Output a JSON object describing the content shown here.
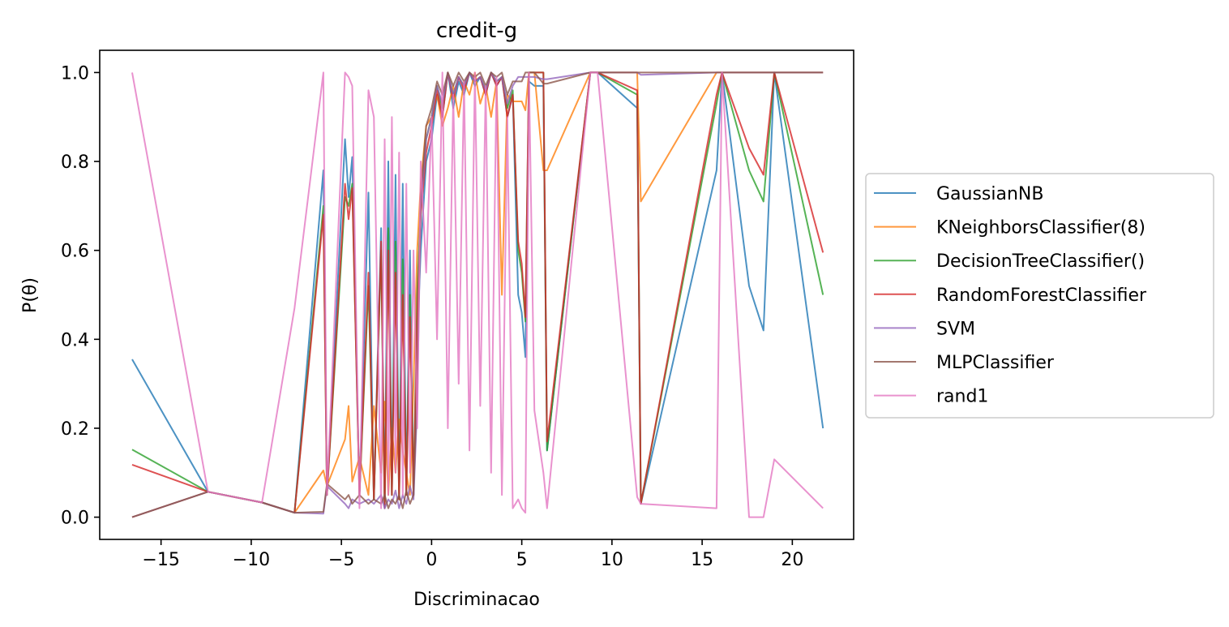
{
  "chart_data": {
    "type": "line",
    "title": "credit-g",
    "xlabel": "Discriminacao",
    "ylabel": "P(θ)",
    "xlim": [
      -18.4,
      23.4
    ],
    "ylim": [
      -0.05,
      1.05
    ],
    "xticks": [
      -15,
      -10,
      -5,
      0,
      5,
      10,
      15,
      20
    ],
    "xtick_labels": [
      "−15",
      "−10",
      "−5",
      "0",
      "5",
      "10",
      "15",
      "20"
    ],
    "yticks": [
      0.0,
      0.2,
      0.4,
      0.6,
      0.8,
      1.0
    ],
    "ytick_labels": [
      "0.0",
      "0.2",
      "0.4",
      "0.6",
      "0.8",
      "1.0"
    ],
    "grid": false,
    "legend_position": "right-outside",
    "series": [
      {
        "name": "GaussianNB",
        "color": "#1f77b4",
        "x": [
          -16.6,
          -12.4,
          -9.4,
          -7.6,
          -6.0,
          -5.8,
          -4.8,
          -4.6,
          -4.4,
          -4.0,
          -3.5,
          -3.2,
          -2.8,
          -2.6,
          -2.4,
          -2.2,
          -2.0,
          -1.8,
          -1.6,
          -1.4,
          -1.2,
          -1.0,
          -0.8,
          -0.6,
          -0.3,
          0.0,
          0.3,
          0.6,
          0.9,
          1.2,
          1.5,
          1.8,
          2.1,
          2.4,
          2.7,
          3.0,
          3.3,
          3.6,
          3.9,
          4.2,
          4.5,
          4.8,
          5.0,
          5.2,
          5.4,
          5.7,
          6.2,
          6.4,
          8.8,
          9.2,
          11.4,
          11.6,
          15.8,
          16.1,
          17.6,
          18.4,
          19.0,
          21.7
        ],
        "y": [
          0.355,
          0.057,
          0.033,
          0.01,
          0.78,
          0.05,
          0.85,
          0.72,
          0.81,
          0.05,
          0.73,
          0.04,
          0.65,
          0.02,
          0.8,
          0.05,
          0.77,
          0.04,
          0.75,
          0.05,
          0.6,
          0.05,
          0.4,
          0.6,
          0.8,
          0.85,
          0.95,
          0.9,
          1.0,
          0.92,
          0.98,
          0.95,
          1.0,
          0.97,
          0.99,
          0.95,
          1.0,
          0.97,
          0.99,
          0.9,
          0.95,
          0.5,
          0.46,
          0.36,
          0.98,
          0.97,
          0.97,
          0.15,
          1.0,
          1.0,
          0.92,
          0.03,
          0.78,
          1.0,
          0.52,
          0.42,
          1.0,
          0.2
        ]
      },
      {
        "name": "KNeighborsClassifier(8)",
        "color": "#ff7f0e",
        "x": [
          -16.6,
          -12.4,
          -9.4,
          -7.6,
          -6.0,
          -5.8,
          -4.8,
          -4.6,
          -4.4,
          -4.0,
          -3.5,
          -3.2,
          -2.8,
          -2.6,
          -2.4,
          -2.2,
          -2.0,
          -1.8,
          -1.6,
          -1.4,
          -1.2,
          -1.0,
          -0.8,
          -0.6,
          -0.3,
          0.0,
          0.3,
          0.6,
          0.9,
          1.2,
          1.5,
          1.8,
          2.1,
          2.4,
          2.7,
          3.0,
          3.3,
          3.6,
          3.9,
          4.2,
          4.5,
          4.8,
          5.0,
          5.2,
          5.4,
          5.7,
          6.2,
          6.4,
          8.8,
          9.2,
          11.4,
          11.6,
          15.8,
          16.1,
          17.6,
          18.4,
          19.0,
          21.7
        ],
        "y": [
          0.0,
          0.057,
          0.033,
          0.01,
          0.105,
          0.07,
          0.175,
          0.25,
          0.08,
          0.135,
          0.05,
          0.25,
          0.1,
          0.26,
          0.05,
          0.2,
          0.1,
          0.22,
          0.15,
          0.1,
          0.05,
          0.3,
          0.6,
          0.75,
          0.88,
          0.9,
          0.95,
          0.88,
          0.92,
          0.97,
          0.9,
          0.98,
          0.95,
          1.0,
          0.93,
          0.97,
          0.9,
          0.98,
          0.5,
          0.95,
          0.935,
          0.935,
          0.935,
          0.915,
          1.0,
          1.0,
          0.78,
          0.78,
          1.0,
          1.0,
          1.0,
          0.71,
          1.0,
          1.0,
          1.0,
          1.0,
          1.0,
          1.0
        ]
      },
      {
        "name": "DecisionTreeClassifier()",
        "color": "#2ca02c",
        "x": [
          -16.6,
          -12.4,
          -9.4,
          -7.6,
          -6.0,
          -5.8,
          -4.8,
          -4.6,
          -4.4,
          -4.0,
          -3.5,
          -3.2,
          -2.8,
          -2.6,
          -2.4,
          -2.2,
          -2.0,
          -1.8,
          -1.6,
          -1.4,
          -1.2,
          -1.0,
          -0.8,
          -0.6,
          -0.3,
          0.0,
          0.3,
          0.6,
          0.9,
          1.2,
          1.5,
          1.8,
          2.1,
          2.4,
          2.7,
          3.0,
          3.3,
          3.6,
          3.9,
          4.2,
          4.5,
          4.8,
          5.0,
          5.2,
          5.4,
          5.7,
          6.2,
          6.4,
          8.8,
          9.2,
          11.4,
          11.6,
          15.8,
          16.1,
          17.6,
          18.4,
          19.0,
          21.7
        ],
        "y": [
          0.152,
          0.057,
          0.033,
          0.01,
          0.7,
          0.05,
          0.72,
          0.7,
          0.75,
          0.05,
          0.52,
          0.04,
          0.6,
          0.02,
          0.65,
          0.05,
          0.62,
          0.04,
          0.58,
          0.05,
          0.5,
          0.05,
          0.5,
          0.7,
          0.85,
          0.9,
          0.97,
          0.92,
          1.0,
          0.95,
          0.99,
          0.97,
          1.0,
          0.98,
          0.99,
          0.96,
          1.0,
          0.98,
          0.99,
          0.92,
          0.96,
          0.6,
          0.55,
          0.44,
          1.0,
          1.0,
          1.0,
          0.15,
          1.0,
          1.0,
          0.95,
          0.03,
          0.93,
          1.0,
          0.78,
          0.71,
          1.0,
          0.5
        ]
      },
      {
        "name": "RandomForestClassifier",
        "color": "#d62728",
        "x": [
          -16.6,
          -12.4,
          -9.4,
          -7.6,
          -6.0,
          -5.8,
          -4.8,
          -4.6,
          -4.4,
          -4.0,
          -3.5,
          -3.2,
          -2.8,
          -2.6,
          -2.4,
          -2.2,
          -2.0,
          -1.8,
          -1.6,
          -1.4,
          -1.2,
          -1.0,
          -0.8,
          -0.6,
          -0.3,
          0.0,
          0.3,
          0.6,
          0.9,
          1.2,
          1.5,
          1.8,
          2.1,
          2.4,
          2.7,
          3.0,
          3.3,
          3.6,
          3.9,
          4.2,
          4.5,
          4.8,
          5.0,
          5.2,
          5.4,
          5.7,
          6.2,
          6.4,
          8.8,
          9.2,
          11.4,
          11.6,
          15.8,
          16.1,
          17.6,
          18.4,
          19.0,
          21.7
        ],
        "y": [
          0.118,
          0.057,
          0.033,
          0.01,
          0.68,
          0.05,
          0.75,
          0.67,
          0.74,
          0.05,
          0.55,
          0.04,
          0.62,
          0.02,
          0.6,
          0.05,
          0.55,
          0.04,
          0.5,
          0.05,
          0.45,
          0.05,
          0.45,
          0.68,
          0.82,
          0.88,
          0.96,
          0.9,
          1.0,
          0.94,
          0.99,
          0.96,
          1.0,
          0.98,
          0.99,
          0.95,
          1.0,
          0.97,
          0.99,
          0.9,
          0.95,
          0.62,
          0.57,
          0.45,
          1.0,
          1.0,
          1.0,
          0.17,
          1.0,
          1.0,
          0.96,
          0.03,
          0.95,
          1.0,
          0.83,
          0.77,
          1.0,
          0.595
        ]
      },
      {
        "name": "SVM",
        "color": "#9467bd",
        "x": [
          -16.6,
          -12.4,
          -9.4,
          -7.6,
          -6.0,
          -5.8,
          -4.8,
          -4.6,
          -4.4,
          -4.0,
          -3.5,
          -3.2,
          -2.8,
          -2.6,
          -2.4,
          -2.2,
          -2.0,
          -1.8,
          -1.6,
          -1.4,
          -1.2,
          -1.0,
          -0.8,
          -0.6,
          -0.3,
          0.0,
          0.3,
          0.6,
          0.9,
          1.2,
          1.5,
          1.8,
          2.1,
          2.4,
          2.7,
          3.0,
          3.3,
          3.6,
          3.9,
          4.2,
          4.5,
          4.8,
          5.0,
          5.2,
          5.4,
          5.7,
          6.2,
          6.4,
          8.8,
          9.2,
          11.4,
          11.6,
          15.8,
          16.1,
          17.6,
          18.4,
          19.0,
          21.7
        ],
        "y": [
          0.0,
          0.057,
          0.033,
          0.01,
          0.008,
          0.07,
          0.03,
          0.02,
          0.04,
          0.03,
          0.04,
          0.03,
          0.05,
          0.02,
          0.04,
          0.03,
          0.06,
          0.02,
          0.05,
          0.03,
          0.07,
          0.04,
          0.25,
          0.7,
          0.85,
          0.9,
          0.97,
          0.93,
          1.0,
          0.95,
          0.99,
          0.97,
          1.0,
          0.98,
          0.99,
          0.96,
          1.0,
          0.98,
          0.99,
          0.93,
          0.97,
          0.99,
          0.99,
          0.99,
          0.99,
          0.99,
          0.985,
          0.985,
          1.0,
          1.0,
          1.0,
          0.995,
          1.0,
          1.0,
          1.0,
          1.0,
          1.0,
          1.0
        ]
      },
      {
        "name": "MLPClassifier",
        "color": "#8c564b",
        "x": [
          -16.6,
          -12.4,
          -9.4,
          -7.6,
          -6.0,
          -5.8,
          -4.8,
          -4.6,
          -4.4,
          -4.0,
          -3.5,
          -3.2,
          -2.8,
          -2.6,
          -2.4,
          -2.2,
          -2.0,
          -1.8,
          -1.6,
          -1.4,
          -1.2,
          -1.0,
          -0.8,
          -0.6,
          -0.3,
          0.0,
          0.3,
          0.6,
          0.9,
          1.2,
          1.5,
          1.8,
          2.1,
          2.4,
          2.7,
          3.0,
          3.3,
          3.6,
          3.9,
          4.2,
          4.5,
          4.8,
          5.0,
          5.2,
          5.4,
          5.7,
          6.2,
          6.4,
          8.8,
          9.2,
          11.4,
          11.6,
          15.8,
          16.1,
          17.6,
          18.4,
          19.0,
          21.7
        ],
        "y": [
          0.0,
          0.057,
          0.033,
          0.01,
          0.012,
          0.075,
          0.04,
          0.05,
          0.03,
          0.05,
          0.03,
          0.04,
          0.03,
          0.05,
          0.02,
          0.04,
          0.03,
          0.05,
          0.02,
          0.06,
          0.03,
          0.05,
          0.3,
          0.72,
          0.88,
          0.92,
          0.98,
          0.95,
          1.0,
          0.97,
          1.0,
          0.98,
          1.0,
          0.99,
          1.0,
          0.97,
          1.0,
          0.99,
          1.0,
          0.95,
          0.98,
          0.98,
          0.98,
          1.0,
          1.0,
          1.0,
          0.975,
          0.975,
          1.0,
          1.0,
          1.0,
          1.0,
          1.0,
          1.0,
          1.0,
          1.0,
          1.0,
          1.0
        ]
      },
      {
        "name": "rand1",
        "color": "#e377c2",
        "x": [
          -16.6,
          -12.4,
          -9.4,
          -7.6,
          -6.0,
          -5.8,
          -4.8,
          -4.6,
          -4.4,
          -4.0,
          -3.5,
          -3.2,
          -2.8,
          -2.6,
          -2.4,
          -2.2,
          -2.0,
          -1.8,
          -1.6,
          -1.4,
          -1.2,
          -1.0,
          -0.8,
          -0.6,
          -0.3,
          0.0,
          0.3,
          0.6,
          0.9,
          1.2,
          1.5,
          1.8,
          2.1,
          2.4,
          2.7,
          3.0,
          3.3,
          3.6,
          3.9,
          4.2,
          4.5,
          4.8,
          5.0,
          5.2,
          5.4,
          5.7,
          6.2,
          6.4,
          8.8,
          9.2,
          11.4,
          11.6,
          15.8,
          16.1,
          17.6,
          18.4,
          19.0,
          21.7
        ],
        "y": [
          1.0,
          0.057,
          0.033,
          0.47,
          1.0,
          0.05,
          1.0,
          0.99,
          0.97,
          0.02,
          0.96,
          0.9,
          0.02,
          0.85,
          0.05,
          0.9,
          0.1,
          0.82,
          0.05,
          0.75,
          0.1,
          0.6,
          0.2,
          0.8,
          0.55,
          0.9,
          0.4,
          1.0,
          0.2,
          0.95,
          0.3,
          0.98,
          0.15,
          1.0,
          0.25,
          0.97,
          0.1,
          0.99,
          0.05,
          0.9,
          0.02,
          0.04,
          0.02,
          0.01,
          1.0,
          0.24,
          0.1,
          0.02,
          1.0,
          1.0,
          0.045,
          0.03,
          0.02,
          1.0,
          0.0,
          0.0,
          0.13,
          0.02
        ]
      }
    ]
  }
}
